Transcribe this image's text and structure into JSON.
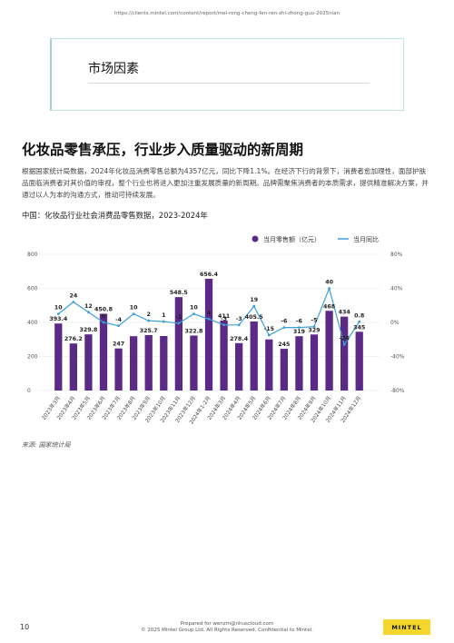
{
  "url": "https://clients.mintel.com/content/report/mei-rong-cheng-fen-ren-zhi-zhong-guo-2025nian",
  "section_title": "市场因素",
  "headline": "化妆品零售承压，行业步入质量驱动的新周期",
  "paragraph": "根据国家统计局数据，2024年化妆品消费零售总额为4357亿元，同比下降1.1%。在经济下行的背景下，消费者愈加理性，面部护肤品面临消费者对其价值的审视，整个行业也将进入更加注重发展质量的新周期。品牌需聚焦消费者的本质需求，提供精准解决方案，并通过以人为本的沟通方式，推动可持续发展。",
  "chart_title": "中国：化妆品行业社会消费品零售数据，2023-2024年",
  "source": "来源: 国家统计局",
  "footer": {
    "page_number": "10",
    "prepared_for": "Prepared for wenzm@nhuscloud.com",
    "copyright": "© 2025 Mintel Group Ltd. All Rights Reserved. Confidential to Mintel.",
    "logo": "MINTEL"
  },
  "colors": {
    "bar": "#5b2a86",
    "line": "#3aa0d8",
    "logo_bg": "#f4d62c"
  },
  "chart_data": {
    "type": "bar",
    "categories": [
      "2023年3月",
      "2023年4月",
      "2023年5月",
      "2023年6月",
      "2023年7月",
      "2023年8月",
      "2023年9月",
      "2023年10月",
      "2023年11月",
      "2023年12月",
      "2024年1-2月",
      "2024年3月",
      "2024年4月",
      "2024年5月",
      "2024年6月",
      "2024年7月",
      "2024年8月",
      "2024年9月",
      "2024年10月",
      "2024年11月",
      "2024年12月"
    ],
    "series": [
      {
        "name": "当月零售额（亿元）",
        "type": "bar",
        "axis": "left",
        "values": [
          393.4,
          276.2,
          329.8,
          450.8,
          247,
          319,
          325.7,
          320,
          548.5,
          322.8,
          656.4,
          411,
          278.4,
          405.5,
          300,
          245,
          319,
          329,
          468,
          434,
          345
        ],
        "labels": [
          "393.4",
          "276.2",
          "329.8",
          "450.8",
          "247",
          "",
          "325.7",
          "",
          "548.5",
          "322.8",
          "656.4",
          "411",
          "278.4",
          "405.5",
          "",
          "245",
          "319",
          "329",
          "468",
          "434",
          "345"
        ]
      },
      {
        "name": "当月同比",
        "type": "line",
        "axis": "right",
        "values": [
          10,
          24,
          12,
          0,
          -4,
          10,
          2,
          1,
          -1,
          10,
          4,
          -3,
          -3,
          19,
          -15,
          -6,
          -6,
          -5,
          40,
          -26,
          0.8
        ],
        "labels": [
          "10",
          "24",
          "12",
          "0",
          "-4",
          "10",
          "2",
          "1",
          "-1",
          "10",
          "4",
          "-3",
          "-3",
          "19",
          "-15",
          "-6",
          "-6",
          "-5",
          "40",
          "-26",
          "0.8"
        ]
      }
    ],
    "left_axis": {
      "min": 0,
      "max": 800,
      "ticks": [
        "0",
        "200",
        "400",
        "600",
        "800"
      ]
    },
    "right_axis": {
      "min": -80,
      "max": 80,
      "ticks": [
        "-80%",
        "-40%",
        "0%",
        "40%",
        "80%"
      ]
    },
    "legend_position": "top-right",
    "grid": true
  }
}
